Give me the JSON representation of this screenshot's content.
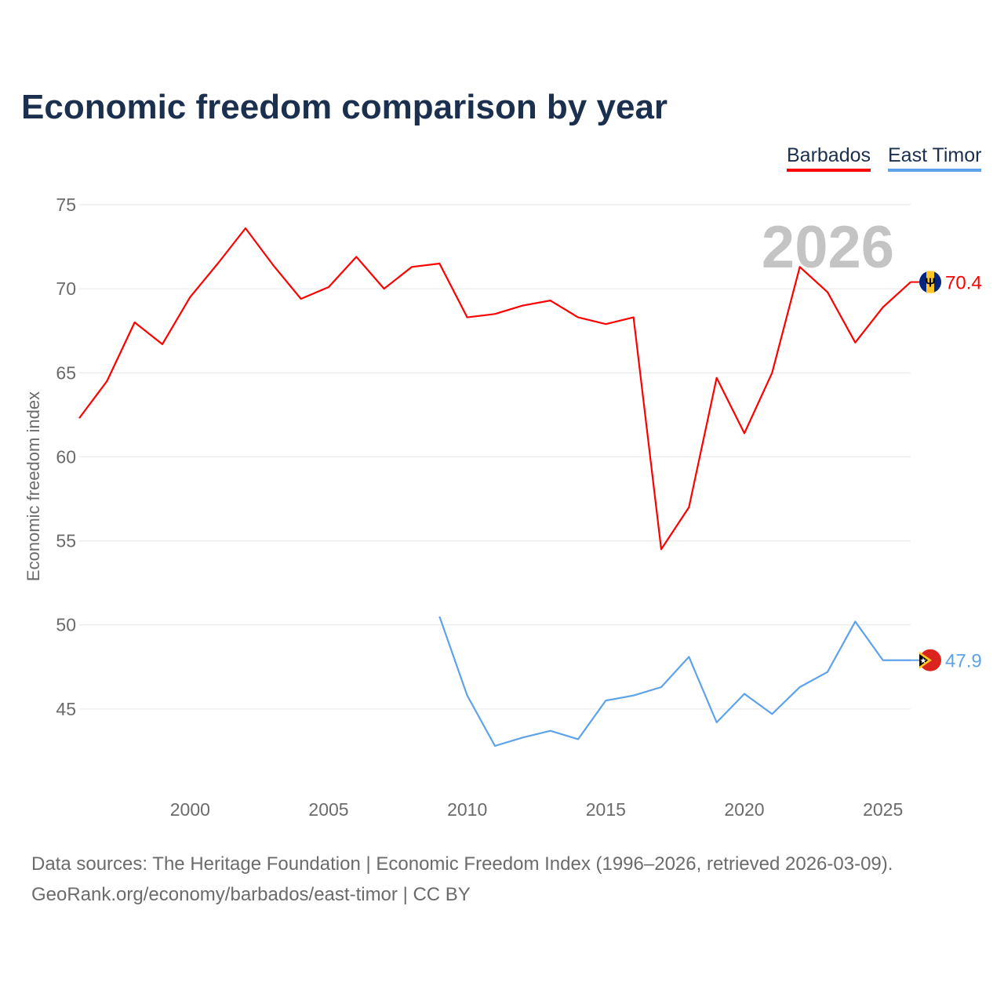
{
  "title": "Economic freedom comparison by year",
  "footer": {
    "line1": "Data sources: The Heritage Foundation | Economic Freedom Index (1996–2026, retrieved 2026-03-09).",
    "line2": "GeoRank.org/economy/barbados/east-timor | CC BY"
  },
  "chart_data": {
    "type": "line",
    "title": "Economic freedom comparison by year",
    "xlabel": "",
    "ylabel": "Economic freedom index",
    "xlim": [
      1996,
      2026
    ],
    "ylim": [
      40,
      75
    ],
    "yticks": [
      45,
      50,
      55,
      60,
      65,
      70,
      75
    ],
    "xticks": [
      2000,
      2005,
      2010,
      2015,
      2020,
      2025
    ],
    "grid": true,
    "legend_placement": "top-right",
    "year_watermark": "2026",
    "series": [
      {
        "name": "Barbados",
        "color": "#ff0000",
        "flag": "barbados-flag",
        "end_label": "70.4",
        "x": [
          1996,
          1997,
          1998,
          1999,
          2000,
          2001,
          2002,
          2003,
          2004,
          2005,
          2006,
          2007,
          2008,
          2009,
          2010,
          2011,
          2012,
          2013,
          2014,
          2015,
          2016,
          2017,
          2018,
          2019,
          2020,
          2021,
          2022,
          2023,
          2024,
          2025,
          2026
        ],
        "values": [
          62.3,
          64.5,
          68.0,
          66.7,
          69.5,
          71.5,
          73.6,
          71.4,
          69.4,
          70.1,
          71.9,
          70.0,
          71.3,
          71.5,
          68.3,
          68.5,
          69.0,
          69.3,
          68.3,
          67.9,
          68.3,
          54.5,
          57.0,
          64.7,
          61.4,
          65.0,
          71.3,
          69.8,
          66.8,
          68.9,
          70.4
        ]
      },
      {
        "name": "East Timor",
        "color": "#5ea3ea",
        "flag": "east-timor-flag",
        "end_label": "47.9",
        "x": [
          2009,
          2010,
          2011,
          2012,
          2013,
          2014,
          2015,
          2016,
          2017,
          2018,
          2019,
          2020,
          2021,
          2022,
          2023,
          2024,
          2025,
          2026
        ],
        "values": [
          50.5,
          45.8,
          42.8,
          43.3,
          43.7,
          43.2,
          45.5,
          45.8,
          46.3,
          48.1,
          44.2,
          45.9,
          44.7,
          46.3,
          47.2,
          50.2,
          47.9,
          47.9
        ]
      }
    ]
  }
}
